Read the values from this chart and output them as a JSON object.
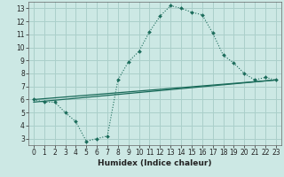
{
  "title": "",
  "xlabel": "Humidex (Indice chaleur)",
  "bg_color": "#cce8e4",
  "grid_color": "#aacfca",
  "line_color": "#1a6b5a",
  "xlim": [
    -0.5,
    23.5
  ],
  "ylim": [
    2.5,
    13.5
  ],
  "xticks": [
    0,
    1,
    2,
    3,
    4,
    5,
    6,
    7,
    8,
    9,
    10,
    11,
    12,
    13,
    14,
    15,
    16,
    17,
    18,
    19,
    20,
    21,
    22,
    23
  ],
  "yticks": [
    3,
    4,
    5,
    6,
    7,
    8,
    9,
    10,
    11,
    12,
    13
  ],
  "curve1_x": [
    0,
    1,
    2,
    3,
    4,
    5,
    6,
    7,
    8,
    9,
    10,
    11,
    12,
    13,
    14,
    15,
    16,
    17,
    18,
    19,
    20,
    21,
    22,
    23
  ],
  "curve1_y": [
    6.0,
    5.8,
    5.8,
    5.0,
    4.3,
    2.8,
    3.0,
    3.2,
    7.5,
    8.9,
    9.7,
    11.2,
    12.4,
    13.2,
    13.0,
    12.7,
    12.5,
    11.1,
    9.4,
    8.8,
    8.0,
    7.5,
    7.7,
    7.5
  ],
  "curve2_x": [
    0,
    23
  ],
  "curve2_y": [
    6.0,
    7.5
  ],
  "curve3_x": [
    0,
    23
  ],
  "curve3_y": [
    5.8,
    7.5
  ],
  "tick_fontsize": 5.5,
  "xlabel_fontsize": 6.5
}
